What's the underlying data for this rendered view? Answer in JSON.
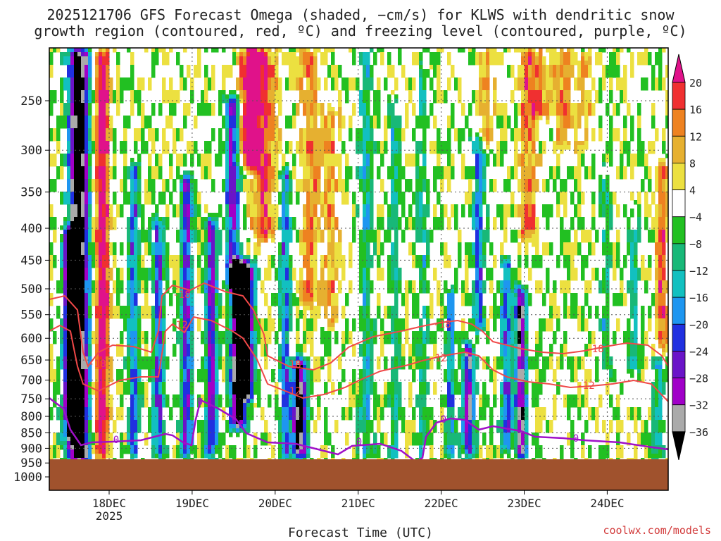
{
  "title_line1": "2025121706 GFS Forecast Omega (shaded, −cm/s) for KLWS with dendritic snow",
  "title_line2": "growth region (contoured, red, ºC) and freezing level (contoured, purple, ºC)",
  "credit": "coolwx.com/models",
  "chart_data": {
    "type": "heatmap",
    "title": "2025121706 GFS Forecast Omega (shaded, −cm/s) for KLWS with dendritic snow growth region (contoured, red, ºC) and freezing level (contoured, purple, ºC)",
    "xlabel": "Forecast Time (UTC)",
    "ylabel": "",
    "x_ticks": [
      "18DEC",
      "19DEC",
      "20DEC",
      "21DEC",
      "22DEC",
      "23DEC",
      "24DEC"
    ],
    "x_year_label": "2025",
    "y_ticks": [
      "250",
      "300",
      "350",
      "400",
      "450",
      "500",
      "550",
      "600",
      "650",
      "700",
      "750",
      "800",
      "850",
      "900",
      "950",
      "1000"
    ],
    "y_scale": "log-pressure (inverted)",
    "colorbar_labels": [
      "20",
      "16",
      "12",
      "8",
      "4",
      "−4",
      "−8",
      "−12",
      "−16",
      "−20",
      "−24",
      "−28",
      "−32",
      "−36"
    ],
    "colorbar_colors": [
      "#e0128a",
      "#f03030",
      "#ee8220",
      "#e6b030",
      "#ece040",
      "#ffffff",
      "#22c022",
      "#18b878",
      "#12c0c0",
      "#1e96f0",
      "#2030e0",
      "#6a14c8",
      "#a000c8",
      "#aaaaaa",
      "#000000"
    ],
    "contour_labels_red": [
      "-18",
      "-12"
    ],
    "contour_labels_purple": [
      "0"
    ],
    "grid": true,
    "ground_color": "#a0522d"
  }
}
